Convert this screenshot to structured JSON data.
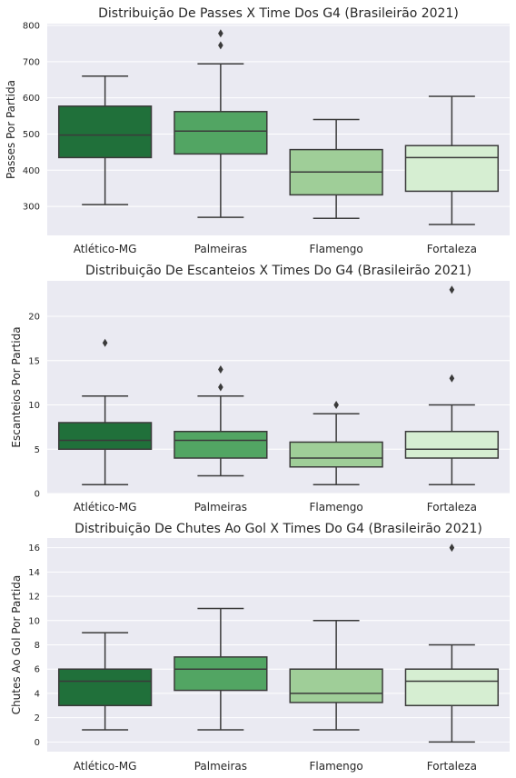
{
  "chart_data": [
    {
      "type": "box",
      "title": "Distribuição De Passes X Time Dos G4 (Brasileirão 2021)",
      "xlabel": "",
      "ylabel": "Passes Por Partida",
      "categories": [
        "Atlético-MG",
        "Palmeiras",
        "Flamengo",
        "Fortaleza"
      ],
      "ylim": [
        220,
        805
      ],
      "yticks": [
        300,
        400,
        500,
        600,
        700,
        800
      ],
      "grid": true,
      "boxes": [
        {
          "whisker_low": 305,
          "q1": 435,
          "median": 497,
          "q3": 577,
          "whisker_high": 660,
          "outliers": []
        },
        {
          "whisker_low": 270,
          "q1": 445,
          "median": 508,
          "q3": 562,
          "whisker_high": 694,
          "outliers": [
            745,
            778
          ]
        },
        {
          "whisker_low": 267,
          "q1": 332,
          "median": 395,
          "q3": 457,
          "whisker_high": 540,
          "outliers": []
        },
        {
          "whisker_low": 250,
          "q1": 342,
          "median": 435,
          "q3": 468,
          "whisker_high": 604,
          "outliers": []
        }
      ]
    },
    {
      "type": "box",
      "title": "Distribuição De Escanteios X Times Do G4 (Brasileirão 2021)",
      "xlabel": "",
      "ylabel": "Escanteios Por Partida",
      "categories": [
        "Atlético-MG",
        "Palmeiras",
        "Flamengo",
        "Fortaleza"
      ],
      "ylim": [
        0,
        24
      ],
      "yticks": [
        0,
        5,
        10,
        15,
        20
      ],
      "grid": true,
      "boxes": [
        {
          "whisker_low": 1,
          "q1": 5,
          "median": 6,
          "q3": 8,
          "whisker_high": 11,
          "outliers": [
            17
          ]
        },
        {
          "whisker_low": 2,
          "q1": 4,
          "median": 6,
          "q3": 7,
          "whisker_high": 11,
          "outliers": [
            12,
            14
          ]
        },
        {
          "whisker_low": 1,
          "q1": 3,
          "median": 4,
          "q3": 5.8,
          "whisker_high": 9,
          "outliers": [
            10
          ]
        },
        {
          "whisker_low": 1,
          "q1": 4,
          "median": 5,
          "q3": 7,
          "whisker_high": 10,
          "outliers": [
            13,
            23
          ]
        }
      ]
    },
    {
      "type": "box",
      "title": "Distribuição De Chutes Ao Gol X Times Do G4 (Brasileirão 2021)",
      "xlabel": "",
      "ylabel": "Chutes Ao Gol Por Partida",
      "categories": [
        "Atlético-MG",
        "Palmeiras",
        "Flamengo",
        "Fortaleza"
      ],
      "ylim": [
        -0.8,
        16.8
      ],
      "yticks": [
        0,
        2,
        4,
        6,
        8,
        10,
        12,
        14,
        16
      ],
      "grid": true,
      "boxes": [
        {
          "whisker_low": 1,
          "q1": 3,
          "median": 5,
          "q3": 6,
          "whisker_high": 9,
          "outliers": []
        },
        {
          "whisker_low": 1,
          "q1": 4.25,
          "median": 6,
          "q3": 7,
          "whisker_high": 11,
          "outliers": []
        },
        {
          "whisker_low": 1,
          "q1": 3.25,
          "median": 4,
          "q3": 6,
          "whisker_high": 10,
          "outliers": []
        },
        {
          "whisker_low": 0,
          "q1": 3,
          "median": 5,
          "q3": 6,
          "whisker_high": 8,
          "outliers": [
            16
          ]
        }
      ]
    }
  ],
  "colors": {
    "boxes": [
      "#20703a",
      "#52a563",
      "#9fce98",
      "#d6eed2"
    ],
    "plot_background": "#eaeaf2",
    "grid": "#ffffff",
    "lines": "#3a3a3a"
  }
}
